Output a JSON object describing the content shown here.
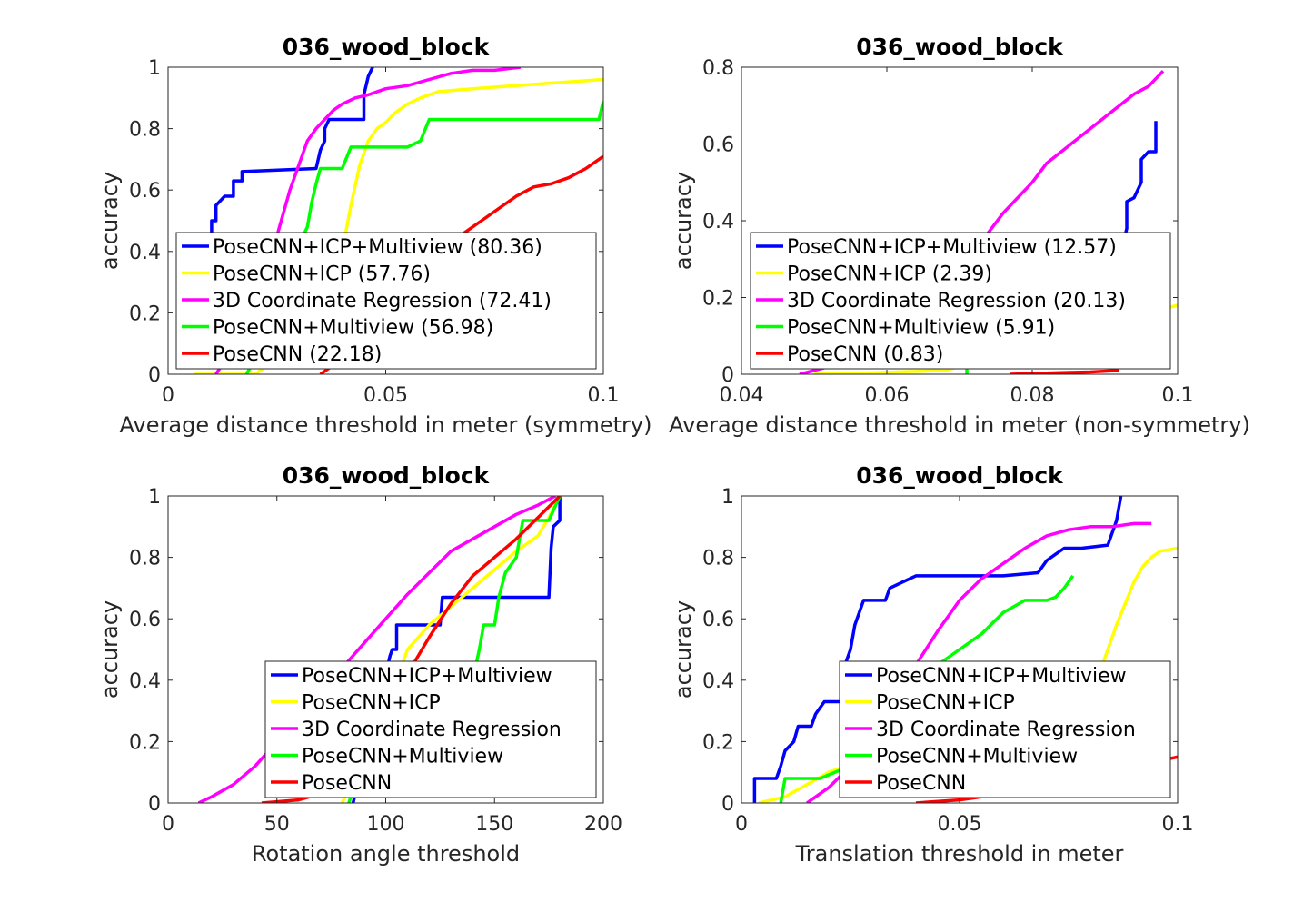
{
  "chart_data": [
    {
      "type": "line",
      "title": "036_wood_block",
      "xlabel": "Average distance threshold in meter (symmetry)",
      "ylabel": "accuracy",
      "xlim": [
        0,
        0.1
      ],
      "ylim": [
        0,
        1
      ],
      "xticks": [
        0,
        0.05,
        0.1
      ],
      "xtick_labels": [
        "0",
        "0.05",
        "0.1"
      ],
      "yticks": [
        0,
        0.2,
        0.4,
        0.6,
        0.8,
        1
      ],
      "ytick_labels": [
        "0",
        "0.2",
        "0.4",
        "0.6",
        "0.8",
        "1"
      ],
      "legend_position": "lower-left",
      "series": [
        {
          "name": "PoseCNN+ICP+Multiview (80.36)",
          "color": "#0000ff",
          "x": [
            0.007,
            0.01,
            0.01,
            0.011,
            0.011,
            0.013,
            0.014,
            0.015,
            0.015,
            0.017,
            0.017,
            0.034,
            0.035,
            0.036,
            0.036,
            0.037,
            0.038,
            0.04,
            0.045,
            0.045,
            0.046,
            0.047
          ],
          "y": [
            0.42,
            0.46,
            0.5,
            0.5,
            0.55,
            0.58,
            0.58,
            0.58,
            0.63,
            0.63,
            0.66,
            0.67,
            0.73,
            0.76,
            0.8,
            0.83,
            0.83,
            0.83,
            0.83,
            0.91,
            0.97,
            1.0
          ]
        },
        {
          "name": "PoseCNN+ICP (57.76)",
          "color": "#ffff00",
          "x": [
            0.006,
            0.01,
            0.02,
            0.03,
            0.036,
            0.04,
            0.042,
            0.044,
            0.046,
            0.048,
            0.05,
            0.052,
            0.055,
            0.058,
            0.062,
            0.07,
            0.08,
            0.09,
            0.1
          ],
          "y": [
            0.0,
            0.0,
            0.0,
            0.1,
            0.25,
            0.4,
            0.55,
            0.68,
            0.76,
            0.8,
            0.82,
            0.85,
            0.88,
            0.9,
            0.92,
            0.93,
            0.94,
            0.95,
            0.96
          ]
        },
        {
          "name": "3D Coordinate Regression (72.41)",
          "color": "#ff00ff",
          "x": [
            0.011,
            0.02,
            0.024,
            0.026,
            0.028,
            0.03,
            0.032,
            0.034,
            0.036,
            0.038,
            0.04,
            0.043,
            0.046,
            0.05,
            0.055,
            0.06,
            0.065,
            0.07,
            0.075,
            0.081
          ],
          "y": [
            0.0,
            0.2,
            0.4,
            0.5,
            0.6,
            0.68,
            0.76,
            0.8,
            0.83,
            0.86,
            0.88,
            0.9,
            0.91,
            0.93,
            0.94,
            0.96,
            0.98,
            0.99,
            0.99,
            1.0
          ]
        },
        {
          "name": "PoseCNN+Multiview (56.98)",
          "color": "#00ff00",
          "x": [
            0.018,
            0.02,
            0.022,
            0.024,
            0.026,
            0.028,
            0.03,
            0.032,
            0.033,
            0.034,
            0.035,
            0.037,
            0.04,
            0.042,
            0.044,
            0.05,
            0.055,
            0.058,
            0.06,
            0.07,
            0.08,
            0.09,
            0.099,
            0.1
          ],
          "y": [
            0.0,
            0.05,
            0.1,
            0.2,
            0.28,
            0.35,
            0.42,
            0.48,
            0.56,
            0.62,
            0.67,
            0.67,
            0.67,
            0.74,
            0.74,
            0.74,
            0.74,
            0.76,
            0.83,
            0.83,
            0.83,
            0.83,
            0.83,
            0.89
          ]
        },
        {
          "name": "PoseCNN (22.18)",
          "color": "#ff0000",
          "x": [
            0.035,
            0.045,
            0.055,
            0.062,
            0.068,
            0.072,
            0.076,
            0.08,
            0.084,
            0.088,
            0.092,
            0.096,
            0.1
          ],
          "y": [
            0.0,
            0.1,
            0.25,
            0.42,
            0.46,
            0.5,
            0.54,
            0.58,
            0.61,
            0.62,
            0.64,
            0.67,
            0.71
          ]
        }
      ]
    },
    {
      "type": "line",
      "title": "036_wood_block",
      "xlabel": "Average distance threshold in meter (non-symmetry)",
      "ylabel": "accuracy",
      "xlim": [
        0.04,
        0.1
      ],
      "ylim": [
        0,
        0.8
      ],
      "xticks": [
        0.04,
        0.06,
        0.08,
        0.1
      ],
      "xtick_labels": [
        "0.04",
        "0.06",
        "0.08",
        "0.1"
      ],
      "yticks": [
        0,
        0.2,
        0.4,
        0.6,
        0.8
      ],
      "ytick_labels": [
        "0",
        "0.2",
        "0.4",
        "0.6",
        "0.8"
      ],
      "legend_position": "lower-left",
      "series": [
        {
          "name": "PoseCNN+ICP+Multiview (12.57)",
          "color": "#0000ff",
          "x": [
            0.092,
            0.093,
            0.093,
            0.094,
            0.095,
            0.095,
            0.096,
            0.097,
            0.097
          ],
          "y": [
            0.3,
            0.38,
            0.45,
            0.46,
            0.5,
            0.56,
            0.58,
            0.58,
            0.66
          ]
        },
        {
          "name": "PoseCNN+ICP (2.39)",
          "color": "#ffff00",
          "x": [
            0.05,
            0.055,
            0.06,
            0.065,
            0.068,
            0.098,
            0.1
          ],
          "y": [
            0.0,
            0.002,
            0.005,
            0.008,
            0.01,
            0.17,
            0.18
          ]
        },
        {
          "name": "3D Coordinate Regression (20.13)",
          "color": "#ff00ff",
          "x": [
            0.048,
            0.052,
            0.056,
            0.06,
            0.064,
            0.068,
            0.072,
            0.074,
            0.076,
            0.078,
            0.08,
            0.082,
            0.084,
            0.086,
            0.088,
            0.09,
            0.092,
            0.094,
            0.096,
            0.098
          ],
          "y": [
            0.0,
            0.02,
            0.05,
            0.09,
            0.15,
            0.22,
            0.32,
            0.37,
            0.42,
            0.46,
            0.5,
            0.55,
            0.58,
            0.61,
            0.64,
            0.67,
            0.7,
            0.73,
            0.75,
            0.79
          ]
        },
        {
          "name": "PoseCNN+Multiview (5.91)",
          "color": "#00ff00",
          "x": [
            0.071,
            0.071
          ],
          "y": [
            0.0,
            0.02
          ]
        },
        {
          "name": "PoseCNN (0.83)",
          "color": "#ff0000",
          "x": [
            0.077,
            0.08,
            0.084,
            0.088,
            0.092
          ],
          "y": [
            0.0,
            0.002,
            0.004,
            0.006,
            0.01
          ]
        }
      ]
    },
    {
      "type": "line",
      "title": "036_wood_block",
      "xlabel": "Rotation angle threshold",
      "ylabel": "accuracy",
      "xlim": [
        0,
        200
      ],
      "ylim": [
        0,
        1
      ],
      "xticks": [
        0,
        50,
        100,
        150,
        200
      ],
      "xtick_labels": [
        "0",
        "50",
        "100",
        "150",
        "200"
      ],
      "yticks": [
        0,
        0.2,
        0.4,
        0.6,
        0.8,
        1
      ],
      "ytick_labels": [
        "0",
        "0.2",
        "0.4",
        "0.6",
        "0.8",
        "1"
      ],
      "legend_position": "lower-right",
      "series": [
        {
          "name": "PoseCNN+ICP+Multiview",
          "color": "#0000ff",
          "x": [
            85,
            95,
            100,
            102,
            103,
            105,
            105,
            115,
            116,
            125,
            126,
            155,
            160,
            170,
            175,
            176,
            177,
            180,
            180
          ],
          "y": [
            0.0,
            0.3,
            0.42,
            0.48,
            0.5,
            0.5,
            0.58,
            0.58,
            0.58,
            0.58,
            0.67,
            0.67,
            0.67,
            0.67,
            0.67,
            0.83,
            0.9,
            0.92,
            1.0
          ]
        },
        {
          "name": "PoseCNN+ICP",
          "color": "#ffff00",
          "x": [
            80,
            95,
            105,
            110,
            120,
            130,
            140,
            150,
            160,
            170,
            175,
            180
          ],
          "y": [
            0.0,
            0.25,
            0.4,
            0.5,
            0.58,
            0.64,
            0.7,
            0.76,
            0.82,
            0.87,
            0.93,
            1.0
          ]
        },
        {
          "name": "3D Coordinate Regression",
          "color": "#ff00ff",
          "x": [
            14,
            20,
            30,
            40,
            50,
            60,
            70,
            80,
            90,
            100,
            110,
            120,
            130,
            140,
            150,
            160,
            170,
            178
          ],
          "y": [
            0.0,
            0.02,
            0.06,
            0.12,
            0.2,
            0.28,
            0.36,
            0.44,
            0.52,
            0.6,
            0.68,
            0.75,
            0.82,
            0.86,
            0.9,
            0.94,
            0.97,
            1.0
          ]
        },
        {
          "name": "PoseCNN+Multiview",
          "color": "#00ff00",
          "x": [
            83,
            84,
            140,
            143,
            145,
            150,
            152,
            155,
            160,
            163,
            165,
            170,
            175,
            180
          ],
          "y": [
            0.0,
            0.02,
            0.4,
            0.5,
            0.58,
            0.58,
            0.67,
            0.75,
            0.8,
            0.92,
            0.92,
            0.92,
            0.92,
            1.0
          ]
        },
        {
          "name": "PoseCNN",
          "color": "#ff0000",
          "x": [
            43,
            60,
            70,
            80,
            90,
            100,
            110,
            120,
            130,
            140,
            150,
            160,
            170,
            180
          ],
          "y": [
            0.0,
            0.01,
            0.03,
            0.08,
            0.18,
            0.3,
            0.42,
            0.54,
            0.65,
            0.74,
            0.8,
            0.86,
            0.93,
            1.0
          ]
        }
      ]
    },
    {
      "type": "line",
      "title": "036_wood_block",
      "xlabel": "Translation threshold in meter",
      "ylabel": "accuracy",
      "xlim": [
        0,
        0.1
      ],
      "ylim": [
        0,
        1
      ],
      "xticks": [
        0,
        0.05,
        0.1
      ],
      "xtick_labels": [
        "0",
        "0.05",
        "0.1"
      ],
      "yticks": [
        0,
        0.2,
        0.4,
        0.6,
        0.8,
        1
      ],
      "ytick_labels": [
        "0",
        "0.2",
        "0.4",
        "0.6",
        "0.8",
        "1"
      ],
      "legend_position": "lower-right",
      "series": [
        {
          "name": "PoseCNN+ICP+Multiview",
          "color": "#0000ff",
          "x": [
            0.003,
            0.003,
            0.008,
            0.009,
            0.01,
            0.012,
            0.013,
            0.016,
            0.017,
            0.019,
            0.02,
            0.023,
            0.024,
            0.025,
            0.026,
            0.027,
            0.028,
            0.029,
            0.033,
            0.034,
            0.04,
            0.045,
            0.06,
            0.068,
            0.07,
            0.072,
            0.074,
            0.078,
            0.084,
            0.086,
            0.087
          ],
          "y": [
            0.0,
            0.08,
            0.08,
            0.12,
            0.17,
            0.2,
            0.25,
            0.25,
            0.29,
            0.33,
            0.33,
            0.33,
            0.46,
            0.5,
            0.58,
            0.62,
            0.66,
            0.66,
            0.66,
            0.7,
            0.74,
            0.74,
            0.74,
            0.75,
            0.79,
            0.81,
            0.83,
            0.83,
            0.84,
            0.92,
            1.0
          ]
        },
        {
          "name": "PoseCNN+ICP",
          "color": "#ffff00",
          "x": [
            0.004,
            0.01,
            0.015,
            0.02,
            0.024,
            0.082,
            0.084,
            0.086,
            0.088,
            0.09,
            0.092,
            0.094,
            0.096,
            0.1
          ],
          "y": [
            0.0,
            0.02,
            0.06,
            0.1,
            0.12,
            0.42,
            0.5,
            0.58,
            0.65,
            0.72,
            0.77,
            0.8,
            0.82,
            0.83
          ]
        },
        {
          "name": "3D Coordinate Regression",
          "color": "#ff00ff",
          "x": [
            0.015,
            0.02,
            0.025,
            0.03,
            0.035,
            0.04,
            0.045,
            0.05,
            0.055,
            0.06,
            0.065,
            0.07,
            0.075,
            0.08,
            0.085,
            0.09,
            0.094
          ],
          "y": [
            0.0,
            0.05,
            0.12,
            0.22,
            0.33,
            0.45,
            0.56,
            0.66,
            0.73,
            0.78,
            0.83,
            0.87,
            0.89,
            0.9,
            0.9,
            0.91,
            0.91
          ]
        },
        {
          "name": "PoseCNN+Multiview",
          "color": "#00ff00",
          "x": [
            0.009,
            0.01,
            0.018,
            0.03,
            0.04,
            0.045,
            0.05,
            0.055,
            0.06,
            0.065,
            0.068,
            0.07,
            0.072,
            0.074,
            0.076
          ],
          "y": [
            0.0,
            0.08,
            0.08,
            0.15,
            0.3,
            0.45,
            0.5,
            0.55,
            0.62,
            0.66,
            0.66,
            0.66,
            0.67,
            0.7,
            0.74
          ]
        },
        {
          "name": "PoseCNN",
          "color": "#ff0000",
          "x": [
            0.04,
            0.05,
            0.06,
            0.07,
            0.08,
            0.09,
            0.1
          ],
          "y": [
            0.0,
            0.01,
            0.03,
            0.06,
            0.09,
            0.12,
            0.15
          ]
        }
      ]
    }
  ]
}
